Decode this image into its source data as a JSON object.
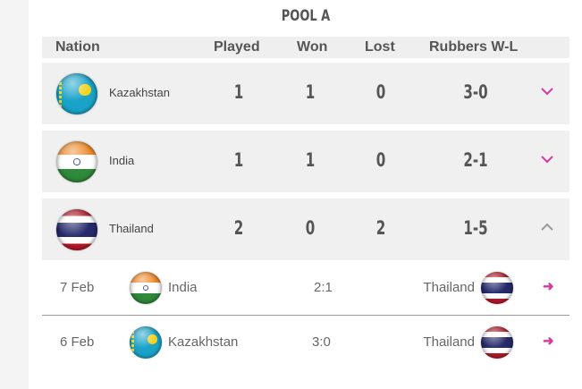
{
  "pool_title": "POOL A",
  "header": {
    "nation": "Nation",
    "played": "Played",
    "won": "Won",
    "lost": "Lost",
    "rubbers": "Rubbers W-L"
  },
  "standings": [
    {
      "nation": "Kazakhstan",
      "played": "1",
      "won": "1",
      "lost": "0",
      "rubbers": "3-0",
      "expanded": false
    },
    {
      "nation": "India",
      "played": "1",
      "won": "1",
      "lost": "0",
      "rubbers": "2-1",
      "expanded": false
    },
    {
      "nation": "Thailand",
      "played": "2",
      "won": "0",
      "lost": "2",
      "rubbers": "1-5",
      "expanded": true
    }
  ],
  "matches": [
    {
      "date": "7 Feb",
      "home": "India",
      "score": "2:1",
      "away": "Thailand",
      "arrow": "➜"
    },
    {
      "date": "6 Feb",
      "home": "Kazakhstan",
      "score": "3:0",
      "away": "Thailand",
      "arrow": "➜"
    }
  ],
  "colors": {
    "accent": "#d63aa0",
    "row_bg": "#f0f0f0"
  }
}
